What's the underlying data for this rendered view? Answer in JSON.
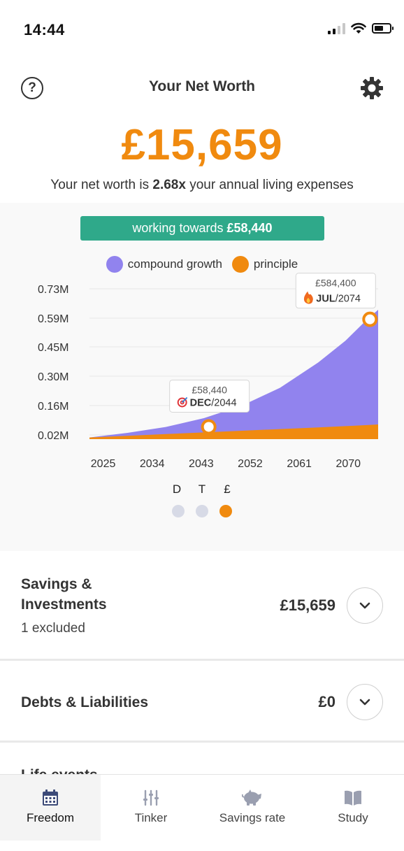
{
  "status_bar": {
    "time": "14:44",
    "icons": [
      "signal-icon",
      "wifi-icon",
      "battery-icon"
    ]
  },
  "header": {
    "title": "Your Net Worth",
    "help_label": "?",
    "settings_icon": "gear-icon"
  },
  "summary": {
    "net_worth": "£15,659",
    "multiplier_prefix": "Your net worth is",
    "multiplier_value": "2.68x",
    "multiplier_suffix": "your annual living expenses"
  },
  "target": {
    "label": "working towards",
    "value": "£58,440"
  },
  "legend": [
    {
      "label": "compound growth",
      "color": "#9183ee"
    },
    {
      "label": "principle",
      "color": "#f08a0f"
    }
  ],
  "chart_data": {
    "type": "area",
    "y_tick_labels": [
      "0.73M",
      "0.59M",
      "0.45M",
      "0.30M",
      "0.16M",
      "0.02M"
    ],
    "y_tick_values": [
      730000,
      590000,
      450000,
      300000,
      160000,
      20000
    ],
    "x_tick_labels": [
      "2025",
      "2034",
      "2043",
      "2052",
      "2061",
      "2070"
    ],
    "x_tick_values": [
      2025,
      2034,
      2043,
      2052,
      2061,
      2070
    ],
    "xlim": [
      2023,
      2076
    ],
    "ylim": [
      0,
      800000
    ],
    "grid": true,
    "series": [
      {
        "name": "compound growth",
        "color": "#9183ee",
        "x": [
          2023,
          2030,
          2037,
          2044,
          2051,
          2058,
          2065,
          2070,
          2074,
          2076
        ],
        "y": [
          8000,
          30000,
          58000,
          100000,
          160000,
          245000,
          370000,
          480000,
          584400,
          630000
        ]
      },
      {
        "name": "principle",
        "color": "#f08a0f",
        "x": [
          2023,
          2030,
          2037,
          2044,
          2051,
          2058,
          2065,
          2070,
          2074,
          2076
        ],
        "y": [
          8000,
          16000,
          24000,
          32000,
          40000,
          48000,
          56000,
          62000,
          67000,
          70000
        ]
      }
    ],
    "annotations": [
      {
        "amount": "£58,440",
        "month": "DEC",
        "year": "/2044",
        "icon": "target-icon",
        "x": 2044.9,
        "y": 58440
      },
      {
        "amount": "£584,400",
        "month": "JUL",
        "year": "/2074",
        "icon": "fire-icon",
        "x": 2074.5,
        "y": 584400
      }
    ]
  },
  "chart_modes": {
    "labels": [
      "D",
      "T",
      "£"
    ],
    "active_index": 2
  },
  "sections": [
    {
      "title_line1": "Savings &",
      "title_line2": "Investments",
      "subtitle": "1 excluded",
      "amount": "£15,659"
    },
    {
      "title": "Debts & Liabilities",
      "amount": "£0"
    },
    {
      "title": "Life events"
    }
  ],
  "tabs": [
    {
      "label": "Freedom",
      "icon": "calendar-icon",
      "active": true
    },
    {
      "label": "Tinker",
      "icon": "sliders-icon",
      "active": false
    },
    {
      "label": "Savings rate",
      "icon": "piggy-bank-icon",
      "active": false
    },
    {
      "label": "Study",
      "icon": "book-icon",
      "active": false
    }
  ]
}
